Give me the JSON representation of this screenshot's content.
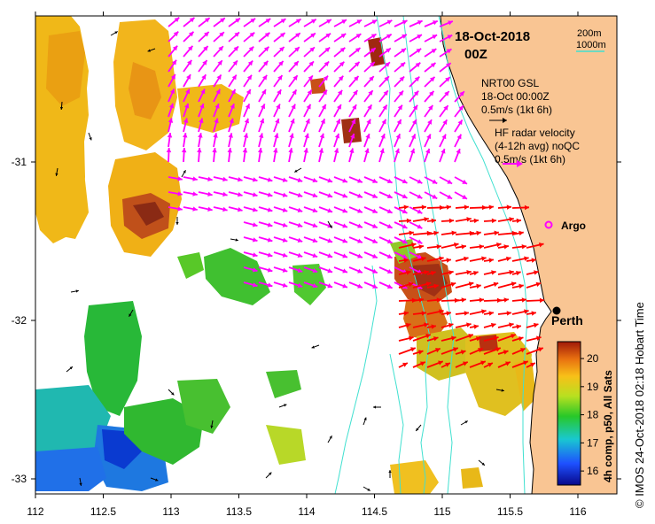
{
  "header": {
    "date": "18-Oct-2018",
    "time": "00Z"
  },
  "depth_legend": {
    "contour1": "200m",
    "contour2": "1000m",
    "contour2_color": "#40e0d0"
  },
  "legend": {
    "line1": "NRT00 GSL",
    "line2": "18-Oct 00:00Z",
    "line3": "0.5m/s (1kt 6h)",
    "line4": "HF radar velocity",
    "line5": "(4-12h avg) noQC",
    "line6": "0.5m/s (1kt 6h)",
    "hf_color": "#ff00ff"
  },
  "places": {
    "argo": "Argo",
    "perth": "Perth"
  },
  "axes": {
    "x_ticks": [
      "112",
      "112.5",
      "113",
      "113.5",
      "114",
      "114.5",
      "115",
      "115.5",
      "116"
    ],
    "y_ticks": [
      "-31",
      "-32",
      "-33"
    ]
  },
  "colorbar": {
    "label": "4h comp, p50, All Sats",
    "ticks": [
      "20",
      "19",
      "18",
      "17",
      "16"
    ],
    "min": 15.5,
    "max": 20.6
  },
  "copyright": "© IMOS 24-Oct-2018 02:18 Hobart Time",
  "colors": {
    "land": "#f9c593",
    "arrow_red": "#ff0000",
    "arrow_magenta": "#ff00ff"
  }
}
